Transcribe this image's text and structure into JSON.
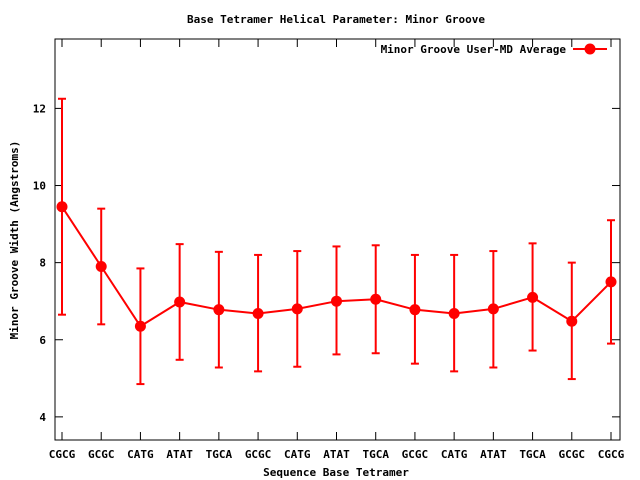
{
  "chart_data": {
    "type": "line",
    "title": "Base Tetramer Helical Parameter: Minor Groove",
    "xlabel": "Sequence Base Tetramer",
    "ylabel": "Minor Groove Width (Angstroms)",
    "categories": [
      "CGCG",
      "GCGC",
      "CATG",
      "ATAT",
      "TGCA",
      "GCGC",
      "CATG",
      "ATAT",
      "TGCA",
      "GCGC",
      "CATG",
      "ATAT",
      "TGCA",
      "GCGC",
      "CGCG"
    ],
    "ylim": [
      3.4,
      13.8
    ],
    "yticks": [
      4,
      6,
      8,
      10,
      12
    ],
    "grid": false,
    "legend_position": "top-right",
    "series": [
      {
        "name": "Minor Groove User-MD Average",
        "color": "#ff0000",
        "marker": "circle",
        "values": [
          9.45,
          7.9,
          6.35,
          6.98,
          6.78,
          6.68,
          6.8,
          7.0,
          7.05,
          6.78,
          6.68,
          6.8,
          7.1,
          6.48,
          7.5
        ],
        "error_low": [
          6.65,
          6.4,
          4.85,
          5.48,
          5.28,
          5.18,
          5.3,
          5.62,
          5.65,
          5.38,
          5.18,
          5.28,
          5.72,
          4.98,
          5.9
        ],
        "error_high": [
          12.25,
          9.4,
          7.85,
          8.48,
          8.28,
          8.2,
          8.3,
          8.42,
          8.45,
          8.2,
          8.2,
          8.3,
          8.5,
          8.0,
          9.1
        ]
      }
    ]
  }
}
